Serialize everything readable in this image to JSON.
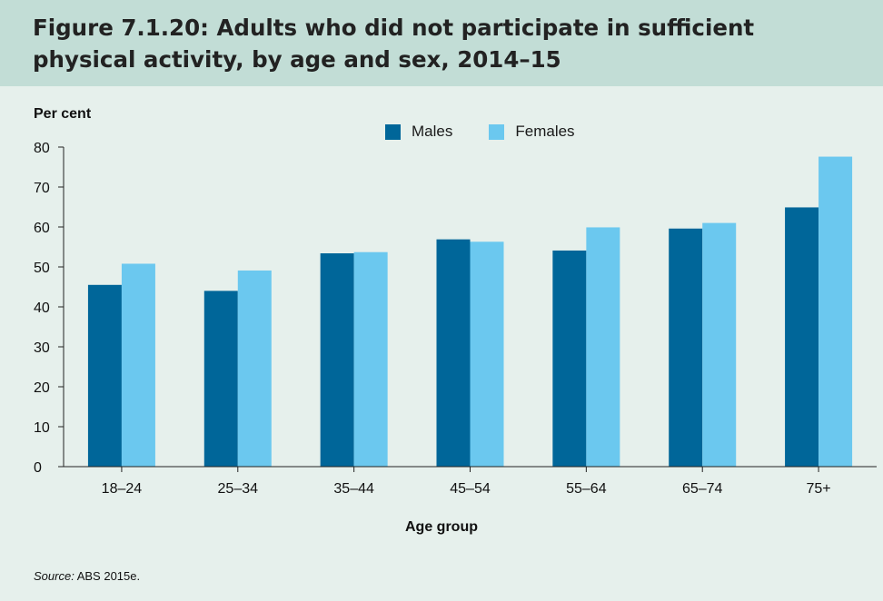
{
  "title": "Figure 7.1.20: Adults who did not participate in sufficient physical activity, by age and sex, 2014–15",
  "source_label": "Source:",
  "source_text": "ABS 2015e.",
  "chart_data": {
    "type": "bar",
    "title": "Figure 7.1.20: Adults who did not participate in sufficient physical activity, by age and sex, 2014–15",
    "ylabel": "Per cent",
    "xlabel": "Age group",
    "categories": [
      "18–24",
      "25–34",
      "35–44",
      "45–54",
      "55–64",
      "65–74",
      "75+"
    ],
    "series": [
      {
        "name": "Males",
        "color": "#006699",
        "values": [
          45.5,
          44.0,
          53.4,
          56.9,
          54.1,
          59.6,
          64.9
        ]
      },
      {
        "name": "Females",
        "color": "#6bc8ef",
        "values": [
          50.8,
          49.1,
          53.7,
          56.3,
          59.9,
          61.0,
          77.6
        ]
      }
    ],
    "ylim": [
      0,
      80
    ],
    "yticks": [
      0,
      10,
      20,
      30,
      40,
      50,
      60,
      70,
      80
    ],
    "grid": false,
    "legend_position": "top-center"
  }
}
